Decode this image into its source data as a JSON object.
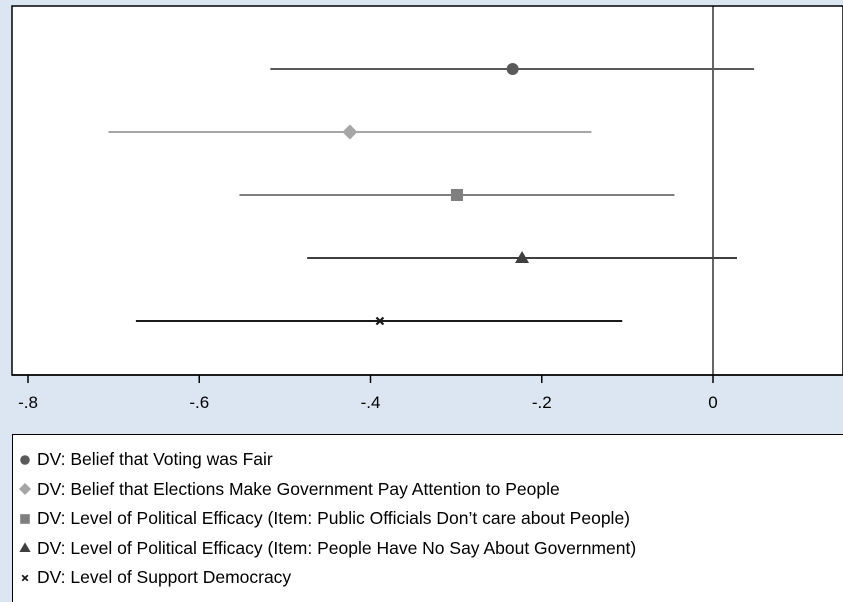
{
  "chart_data": {
    "type": "scatter",
    "title": "",
    "xlabel": "",
    "ylabel": "",
    "xlim": [
      -0.82,
      0.27
    ],
    "xticks": [
      {
        "value": -0.8,
        "label": "-.8"
      },
      {
        "value": -0.6,
        "label": "-.6"
      },
      {
        "value": -0.4,
        "label": "-.4"
      },
      {
        "value": -0.2,
        "label": "-.2"
      },
      {
        "value": 0,
        "label": "0"
      }
    ],
    "reference_line": 0,
    "grid": false,
    "legend_position": "bottom",
    "series": [
      {
        "name": "DV: Belief that Voting was Fair",
        "estimate": -0.234,
        "ci": [
          -0.517,
          0.048
        ],
        "marker": "circle",
        "color": "#595959"
      },
      {
        "name": "DV: Belief that Elections Make Government Pay Attention to People",
        "estimate": -0.424,
        "ci": [
          -0.706,
          -0.142
        ],
        "marker": "diamond",
        "color": "#a6a6a6"
      },
      {
        "name": "DV: Level of Political Efficacy (Item: Public Officials Don’t care about People)",
        "estimate": -0.299,
        "ci": [
          -0.553,
          -0.045
        ],
        "marker": "square",
        "color": "#7f7f7f"
      },
      {
        "name": "DV: Level of Political Efficacy (Item: People Have No Say About Government)",
        "estimate": -0.223,
        "ci": [
          -0.474,
          0.028
        ],
        "marker": "triangle",
        "color": "#3f3f3f"
      },
      {
        "name": "DV: Level of Support Democracy",
        "estimate": -0.389,
        "ci": [
          -0.674,
          -0.106
        ],
        "marker": "x",
        "color": "#1a1a1a"
      }
    ]
  }
}
